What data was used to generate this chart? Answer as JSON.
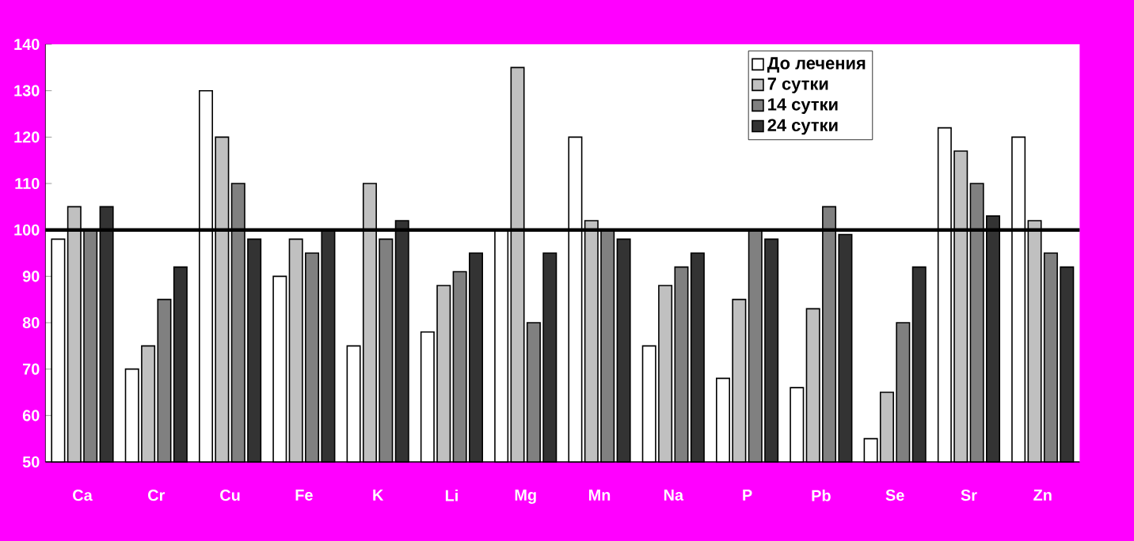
{
  "chart_data": {
    "type": "bar",
    "categories": [
      "Ca",
      "Cr",
      "Cu",
      "Fe",
      "K",
      "Li",
      "Mg",
      "Mn",
      "Na",
      "P",
      "Pb",
      "Se",
      "Sr",
      "Zn"
    ],
    "series": [
      {
        "name": "До лечения",
        "color": "#ffffff",
        "values": [
          98,
          70,
          130,
          90,
          75,
          78,
          100,
          120,
          75,
          68,
          66,
          55,
          122,
          120
        ]
      },
      {
        "name": "7 сутки",
        "color": "#c0c0c0",
        "values": [
          105,
          75,
          120,
          98,
          110,
          88,
          135,
          102,
          88,
          85,
          83,
          65,
          117,
          102
        ]
      },
      {
        "name": "14 сутки",
        "color": "#808080",
        "values": [
          100,
          85,
          110,
          95,
          98,
          91,
          80,
          100,
          92,
          100,
          105,
          80,
          110,
          95
        ]
      },
      {
        "name": "24 сутки",
        "color": "#333333",
        "values": [
          105,
          92,
          98,
          100,
          102,
          95,
          95,
          98,
          95,
          98,
          99,
          92,
          103,
          92
        ]
      }
    ],
    "ylim": [
      50,
      140
    ],
    "yticks": [
      50,
      60,
      70,
      80,
      90,
      100,
      110,
      120,
      130,
      140
    ],
    "ref_lines": [
      {
        "axis": "y",
        "value": 100,
        "color": "#000000"
      }
    ],
    "grid": false,
    "legend": "top right"
  }
}
